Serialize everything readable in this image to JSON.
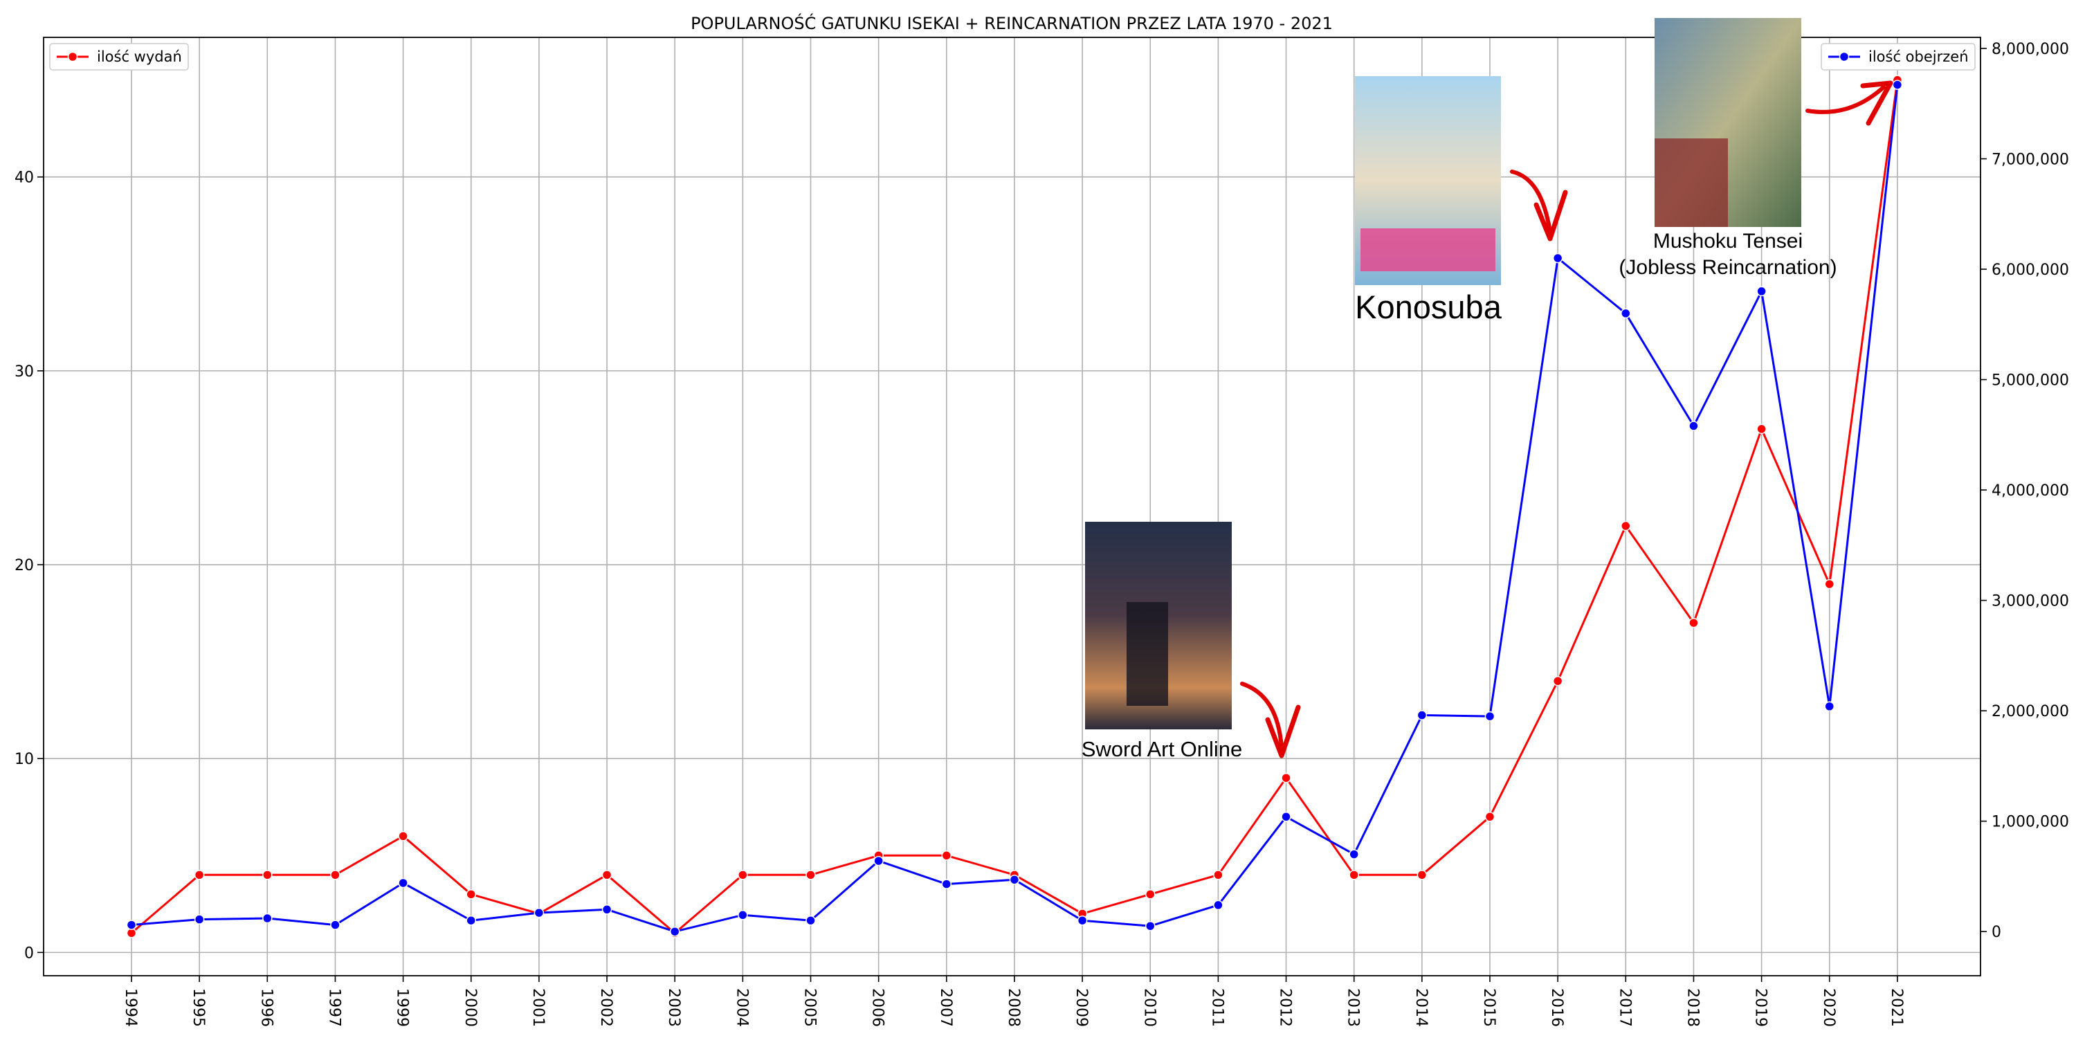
{
  "chart_data": {
    "type": "line",
    "title": "POPULARNOŚĆ GATUNKU ISEKAI + REINCARNATION PRZEZ LATA 1970 - 2021",
    "x": [
      "1994",
      "1995",
      "1996",
      "1997",
      "1999",
      "2000",
      "2001",
      "2002",
      "2003",
      "2004",
      "2005",
      "2006",
      "2007",
      "2008",
      "2009",
      "2010",
      "2011",
      "2012",
      "2013",
      "2014",
      "2015",
      "2016",
      "2017",
      "2018",
      "2019",
      "2020",
      "2021"
    ],
    "series": [
      {
        "name": "ilość wydań",
        "axis": "left",
        "color": "#ff0000",
        "values": [
          1,
          4,
          4,
          4,
          6,
          3,
          2,
          4,
          1,
          4,
          4,
          5,
          5,
          4,
          2,
          3,
          4,
          9,
          4,
          4,
          7,
          14,
          22,
          17,
          27,
          19,
          45
        ]
      },
      {
        "name": "ilość obejrzeń",
        "axis": "right",
        "color": "#0000ff",
        "values": [
          60000,
          110000,
          120000,
          60000,
          440000,
          100000,
          170000,
          200000,
          0,
          150000,
          100000,
          640000,
          430000,
          470000,
          100000,
          50000,
          240000,
          1040000,
          700000,
          1960000,
          1950000,
          6100000,
          5600000,
          4580000,
          5800000,
          2040000,
          7670000
        ]
      }
    ],
    "y_left": {
      "ylim": [
        -1.2,
        47.2
      ],
      "ticks": [
        0,
        10,
        20,
        30,
        40
      ],
      "tick_labels": [
        "0",
        "10",
        "20",
        "30",
        "40"
      ]
    },
    "y_right": {
      "ylim": [
        -400000,
        8100000
      ],
      "ticks": [
        0,
        1000000,
        2000000,
        3000000,
        4000000,
        5000000,
        6000000,
        7000000,
        8000000
      ],
      "tick_labels": [
        "0",
        "1,000,000",
        "2,000,000",
        "3,000,000",
        "4,000,000",
        "5,000,000",
        "6,000,000",
        "7,000,000",
        "8,000,000"
      ]
    },
    "grid": true,
    "legend_left": "top-left",
    "legend_right": "top-right",
    "annotations": [
      {
        "label": "Sword Art Online",
        "year": "2012"
      },
      {
        "label": "Konosuba",
        "year": "2016"
      },
      {
        "label": "Mushoku Tensei",
        "label2": "(Jobless Reincarnation)",
        "year": "2021"
      }
    ]
  }
}
